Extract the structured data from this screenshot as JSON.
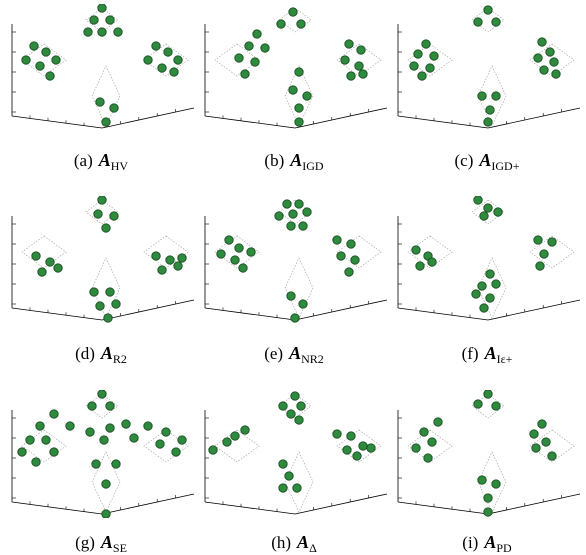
{
  "figure": {
    "panels": [
      {
        "label": "(a)",
        "symbol": "A",
        "subscript": "HV"
      },
      {
        "label": "(b)",
        "symbol": "A",
        "subscript": "IGD"
      },
      {
        "label": "(c)",
        "symbol": "A",
        "subscript": "IGD+"
      },
      {
        "label": "(d)",
        "symbol": "A",
        "subscript": "R2"
      },
      {
        "label": "(e)",
        "symbol": "A",
        "subscript": "NR2"
      },
      {
        "label": "(f)",
        "symbol": "A",
        "subscript": "Iε+"
      },
      {
        "label": "(g)",
        "symbol": "A",
        "subscript": "SE"
      },
      {
        "label": "(h)",
        "symbol": "A",
        "subscript": "Δ"
      },
      {
        "label": "(i)",
        "symbol": "A",
        "subscript": "PD"
      }
    ]
  },
  "colors": {
    "point_fill": "#2e8b3e",
    "point_stroke": "#1a4d22",
    "surface": "#9a9a9a",
    "axis": "#000000"
  }
}
